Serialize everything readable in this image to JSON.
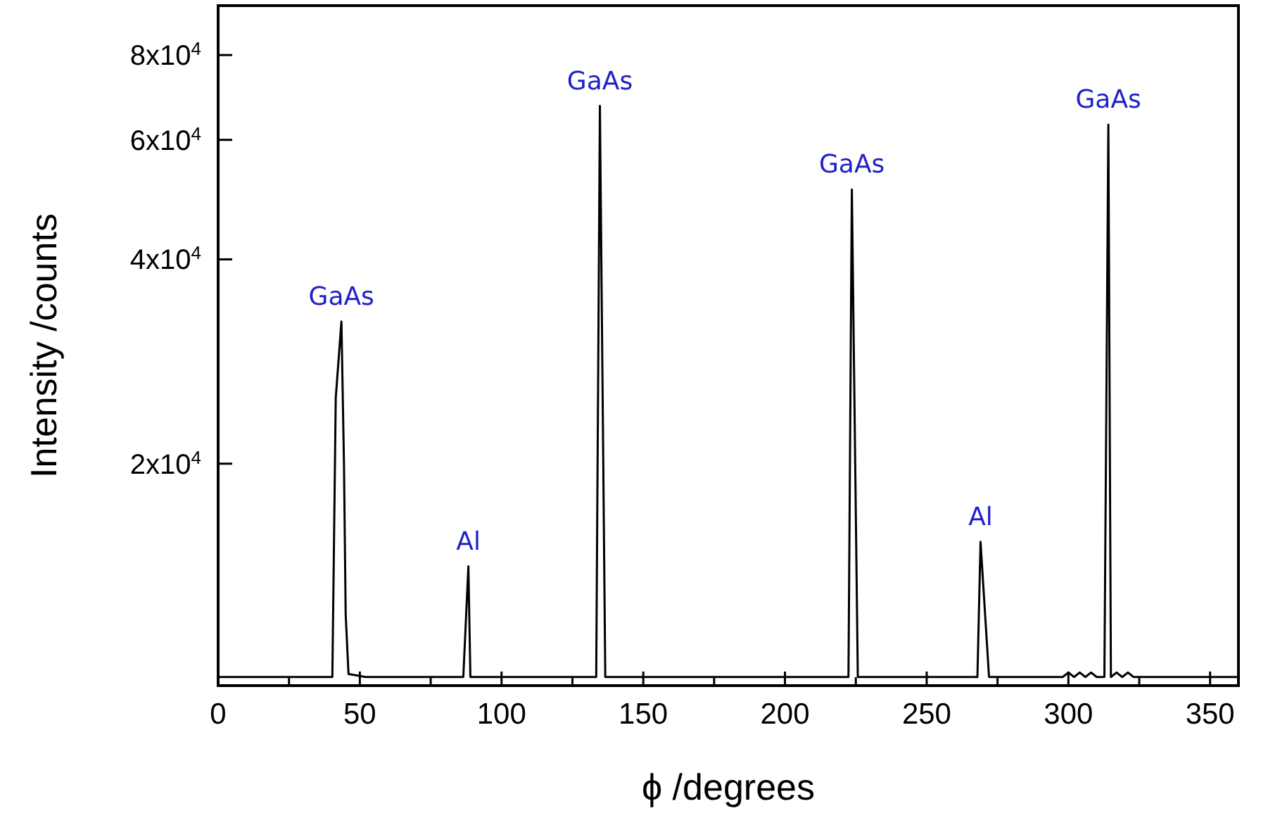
{
  "chart_data": {
    "type": "line",
    "xlabel": "ϕ /degrees",
    "ylabel": "Intensity /counts",
    "log": true,
    "grid": false,
    "line_style": "solid",
    "xlim": [
      0,
      360
    ],
    "xticks": [
      0,
      {
        "value": 25,
        "label": null
      },
      50,
      {
        "value": 75,
        "label": null
      },
      100,
      {
        "value": 125,
        "label": null
      },
      150,
      {
        "value": 175,
        "label": null
      },
      200,
      {
        "value": 225,
        "label": null
      },
      250,
      {
        "value": 275,
        "label": null
      },
      300,
      {
        "value": 325,
        "label": null
      },
      350
    ],
    "ylim": [
      9420,
      94600
    ],
    "yticks": [
      {
        "value": 20000,
        "label": "2x10$^{4}$"
      },
      {
        "value": 40000,
        "label": "4x10$^{4}$"
      },
      {
        "value": 60000,
        "label": "6x10$^{4}$"
      },
      {
        "value": 80000,
        "label": "8x10$^{4}$"
      }
    ],
    "series": [
      {
        "color": "#000000",
        "x": [
          0,
          40.3,
          41.5,
          43.5,
          44.4,
          45,
          46,
          52,
          86.5,
          88.3,
          89,
          133.4,
          134.7,
          136.6,
          222.4,
          223.6,
          225.7,
          267.9,
          269,
          272,
          298,
          300,
          302,
          304,
          306,
          308,
          310,
          312.7,
          314.1,
          315,
          317,
          319,
          321,
          323,
          325,
          360
        ],
        "values": [
          9700,
          9700,
          25000,
          32400,
          20000,
          12000,
          9800,
          9700,
          9700,
          14120,
          9700,
          9700,
          67300,
          9700,
          9700,
          50700,
          9700,
          9700,
          15340,
          9700,
          9700,
          9850,
          9700,
          9850,
          9700,
          9850,
          9700,
          9700,
          63200,
          9700,
          9850,
          9700,
          9850,
          9700,
          9700,
          9700
        ]
      }
    ],
    "annotations": [
      {
        "text": "GaAs",
        "x": 43.5,
        "y": 32400
      },
      {
        "text": "Al",
        "x": 88.3,
        "y": 14120
      },
      {
        "text": "GaAs",
        "x": 134.7,
        "y": 67300
      },
      {
        "text": "GaAs",
        "x": 223.6,
        "y": 50700
      },
      {
        "text": "Al",
        "x": 269,
        "y": 15340
      },
      {
        "text": "GaAs",
        "x": 314.1,
        "y": 63200
      }
    ]
  }
}
